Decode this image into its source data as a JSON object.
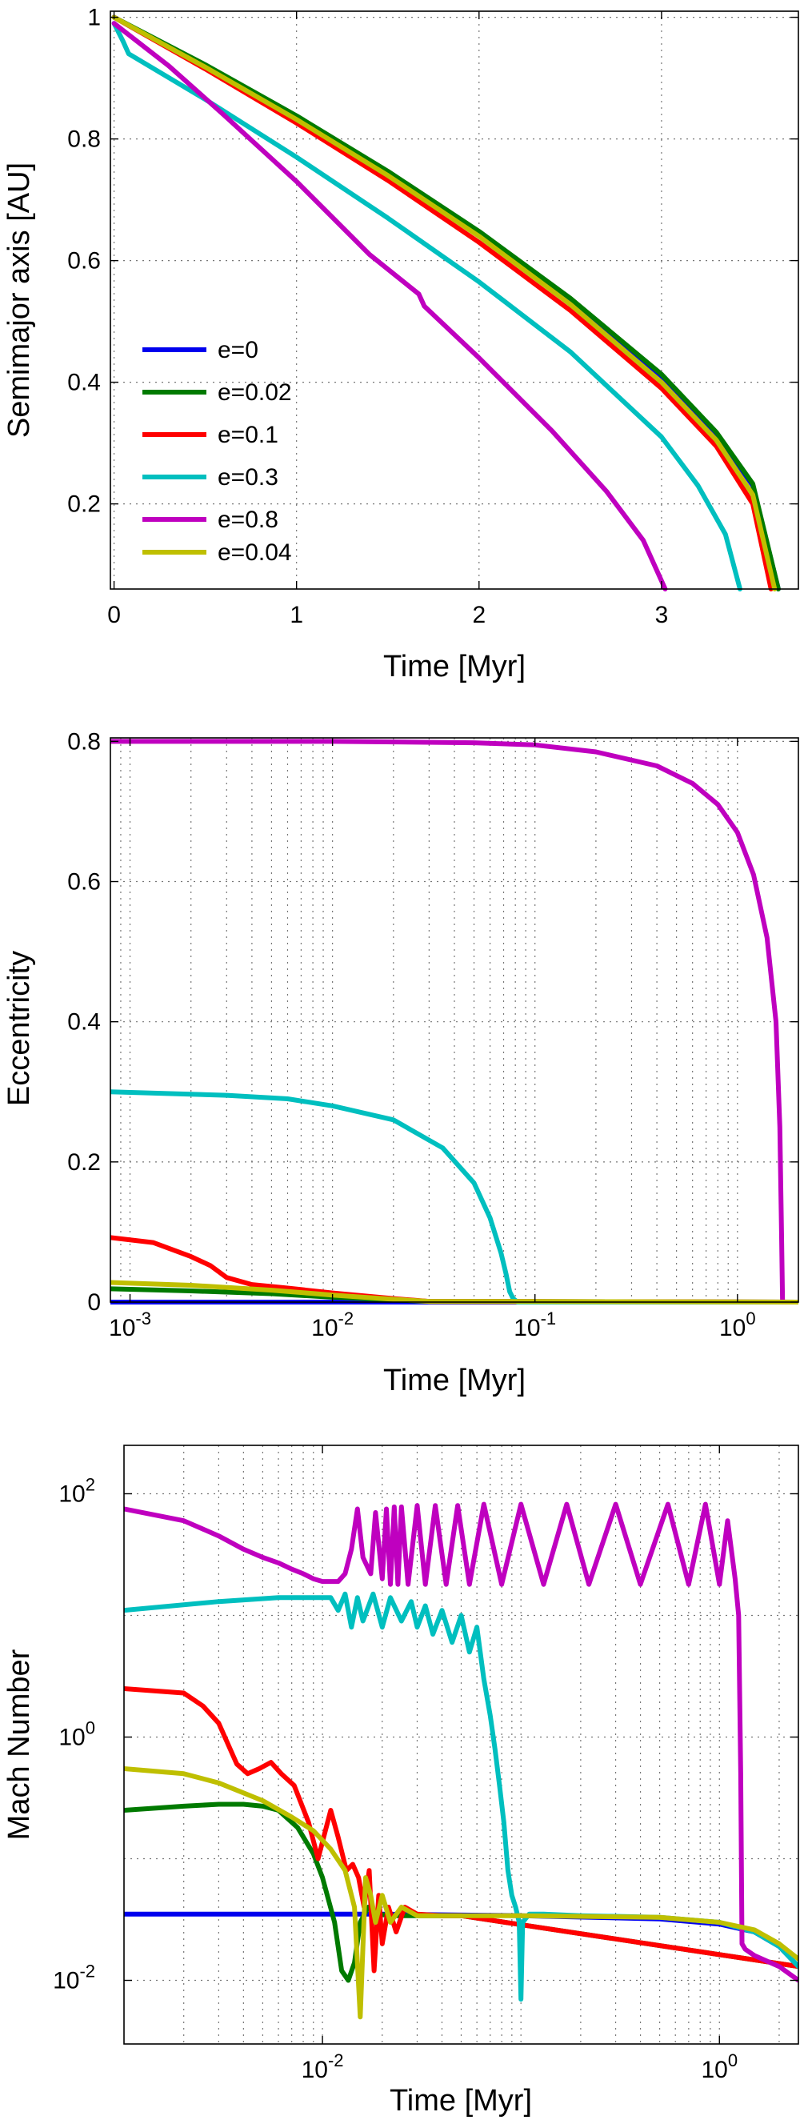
{
  "colors": {
    "e0": "#0000ee",
    "e002": "#007a00",
    "e01": "#ff0000",
    "e03": "#00bfbf",
    "e08": "#bf00bf",
    "e004": "#bfbf00"
  },
  "chart_data": [
    {
      "type": "line",
      "xscale": "linear",
      "yscale": "linear",
      "xlabel": "Time [Myr]",
      "ylabel": "Semimajor axis [AU]",
      "xlim": [
        -0.02,
        3.75
      ],
      "ylim": [
        0.06,
        1.01
      ],
      "grid": true,
      "legend_position": "bottom-left",
      "xticks": [
        0,
        1,
        2,
        3
      ],
      "xticklabels": [
        "0",
        "1",
        "2",
        "3"
      ],
      "yticks": [
        0.2,
        0.4,
        0.6,
        0.8,
        1.0
      ],
      "yticklabels": [
        "0.2",
        "0.4",
        "0.6",
        "0.8",
        "1"
      ],
      "series": [
        {
          "name": "e=0",
          "color_key": "e0",
          "x": [
            0,
            0.5,
            1.0,
            1.5,
            2.0,
            2.5,
            3.0,
            3.3,
            3.5,
            3.64
          ],
          "y": [
            1.0,
            0.92,
            0.836,
            0.745,
            0.645,
            0.535,
            0.41,
            0.315,
            0.23,
            0.06
          ]
        },
        {
          "name": "e=0.02",
          "color_key": "e002",
          "x": [
            0,
            0.5,
            1.0,
            1.5,
            2.0,
            2.5,
            3.0,
            3.3,
            3.5,
            3.64
          ],
          "y": [
            1.0,
            0.922,
            0.838,
            0.747,
            0.648,
            0.538,
            0.413,
            0.318,
            0.233,
            0.06
          ]
        },
        {
          "name": "e=0.1",
          "color_key": "e01",
          "x": [
            0,
            0.5,
            1.0,
            1.5,
            2.0,
            2.5,
            3.0,
            3.3,
            3.5,
            3.6
          ],
          "y": [
            1.0,
            0.915,
            0.826,
            0.732,
            0.63,
            0.518,
            0.39,
            0.295,
            0.2,
            0.06
          ]
        },
        {
          "name": "e=0.3",
          "color_key": "e03",
          "x": [
            0,
            0.05,
            0.08,
            0.5,
            1.0,
            1.5,
            2.0,
            2.5,
            3.0,
            3.2,
            3.35,
            3.43
          ],
          "y": [
            0.99,
            0.96,
            0.94,
            0.865,
            0.77,
            0.67,
            0.565,
            0.45,
            0.31,
            0.23,
            0.15,
            0.06
          ]
        },
        {
          "name": "e=0.8",
          "color_key": "e08",
          "x": [
            0,
            0.3,
            0.6,
            1.0,
            1.4,
            1.67,
            1.7,
            2.0,
            2.4,
            2.7,
            2.9,
            3.02
          ],
          "y": [
            0.99,
            0.92,
            0.84,
            0.73,
            0.61,
            0.545,
            0.525,
            0.44,
            0.32,
            0.22,
            0.14,
            0.06
          ]
        },
        {
          "name": "e=0.04",
          "color_key": "e004",
          "x": [
            0,
            0.5,
            1.0,
            1.5,
            2.0,
            2.5,
            3.0,
            3.3,
            3.5,
            3.62
          ],
          "y": [
            1.0,
            0.918,
            0.832,
            0.74,
            0.64,
            0.528,
            0.4,
            0.305,
            0.215,
            0.06
          ]
        }
      ]
    },
    {
      "type": "line",
      "xscale": "log",
      "yscale": "linear",
      "xlabel": "Time [Myr]",
      "ylabel": "Eccentricity",
      "xlim": [
        0.0008,
        2.0
      ],
      "ylim": [
        0,
        0.805
      ],
      "grid": true,
      "xticks": [
        0.001,
        0.01,
        0.1,
        1
      ],
      "xticklabels": [
        "10",
        "10",
        "10",
        "10"
      ],
      "xtickexps": [
        "-3",
        "-2",
        "-1",
        "0"
      ],
      "yticks": [
        0,
        0.2,
        0.4,
        0.6,
        0.8
      ],
      "yticklabels": [
        "0",
        "0.2",
        "0.4",
        "0.6",
        "0.8"
      ],
      "series": [
        {
          "name": "e=0",
          "color_key": "e0",
          "x": [
            0.0008,
            2.0
          ],
          "y": [
            0.0,
            0.0
          ]
        },
        {
          "name": "e=0.02",
          "color_key": "e002",
          "x": [
            0.0008,
            0.002,
            0.005,
            0.01,
            0.02,
            0.03,
            2.0
          ],
          "y": [
            0.019,
            0.016,
            0.012,
            0.007,
            0.003,
            0.001,
            0.0
          ]
        },
        {
          "name": "e=0.1",
          "color_key": "e01",
          "x": [
            0.0008,
            0.0013,
            0.002,
            0.0025,
            0.003,
            0.004,
            0.006,
            0.01,
            0.02,
            0.03,
            2.0
          ],
          "y": [
            0.092,
            0.085,
            0.065,
            0.052,
            0.035,
            0.025,
            0.02,
            0.013,
            0.005,
            0.001,
            0.0
          ]
        },
        {
          "name": "e=0.3",
          "color_key": "e03",
          "x": [
            0.0008,
            0.003,
            0.006,
            0.01,
            0.02,
            0.035,
            0.05,
            0.06,
            0.068,
            0.072,
            0.075,
            0.078,
            0.082,
            2.0
          ],
          "y": [
            0.3,
            0.295,
            0.29,
            0.28,
            0.26,
            0.22,
            0.17,
            0.12,
            0.07,
            0.04,
            0.015,
            0.005,
            0.0,
            0.0
          ]
        },
        {
          "name": "e=0.8",
          "color_key": "e08",
          "x": [
            0.0008,
            0.01,
            0.05,
            0.1,
            0.2,
            0.4,
            0.6,
            0.8,
            1.0,
            1.2,
            1.4,
            1.55,
            1.62,
            1.65,
            1.67,
            2.0
          ],
          "y": [
            0.8,
            0.8,
            0.798,
            0.795,
            0.785,
            0.765,
            0.74,
            0.71,
            0.67,
            0.61,
            0.52,
            0.4,
            0.25,
            0.1,
            0.0,
            0.0
          ]
        },
        {
          "name": "e=0.04",
          "color_key": "e004",
          "x": [
            0.0008,
            0.002,
            0.005,
            0.01,
            0.02,
            0.03,
            2.0
          ],
          "y": [
            0.028,
            0.024,
            0.017,
            0.01,
            0.004,
            0.001,
            0.0
          ]
        }
      ]
    },
    {
      "type": "line",
      "xscale": "log",
      "yscale": "log",
      "xlabel": "Time [Myr]",
      "ylabel": "Mach Number",
      "xlim": [
        0.001,
        2.5
      ],
      "ylim": [
        0.003,
        250
      ],
      "grid": true,
      "xticks": [
        0.01,
        1
      ],
      "xticklabels": [
        "10",
        "10"
      ],
      "xtickexps": [
        "-2",
        "0"
      ],
      "yticks": [
        0.01,
        1,
        100
      ],
      "yticklabels": [
        "10",
        "10",
        "10"
      ],
      "ytickexps": [
        "-2",
        "0",
        "2"
      ],
      "series": [
        {
          "name": "e=0",
          "color_key": "e0",
          "x": [
            0.001,
            0.02,
            0.1,
            0.5,
            1.0,
            1.5,
            2.0,
            2.5
          ],
          "y": [
            0.035,
            0.035,
            0.034,
            0.032,
            0.029,
            0.025,
            0.019,
            0.013
          ]
        },
        {
          "name": "e=0.02",
          "color_key": "e002",
          "x": [
            0.001,
            0.002,
            0.003,
            0.004,
            0.005,
            0.006,
            0.0075,
            0.009,
            0.01,
            0.0115,
            0.0125,
            0.0135,
            0.0145,
            0.0155,
            0.017,
            0.019,
            0.022,
            0.03,
            0.05,
            2.5
          ],
          "y": [
            0.25,
            0.27,
            0.28,
            0.28,
            0.27,
            0.25,
            0.18,
            0.11,
            0.07,
            0.03,
            0.012,
            0.01,
            0.014,
            0.03,
            0.04,
            0.035,
            0.034,
            0.034,
            0.034,
            0.013
          ]
        },
        {
          "name": "e=0.1",
          "color_key": "e01",
          "x": [
            0.001,
            0.002,
            0.0025,
            0.003,
            0.0037,
            0.0042,
            0.0048,
            0.0055,
            0.0062,
            0.0072,
            0.0085,
            0.0095,
            0.011,
            0.012,
            0.0132,
            0.0142,
            0.0152,
            0.0162,
            0.0172,
            0.0182,
            0.0192,
            0.02,
            0.0215,
            0.0235,
            0.026,
            0.03,
            0.04,
            0.05,
            2.5
          ],
          "y": [
            2.5,
            2.3,
            1.8,
            1.3,
            0.6,
            0.5,
            0.55,
            0.62,
            0.5,
            0.4,
            0.2,
            0.1,
            0.25,
            0.15,
            0.08,
            0.09,
            0.07,
            0.04,
            0.08,
            0.012,
            0.05,
            0.02,
            0.04,
            0.025,
            0.04,
            0.035,
            0.034,
            0.034,
            0.013
          ]
        },
        {
          "name": "e=0.3",
          "color_key": "e03",
          "x": [
            0.001,
            0.003,
            0.006,
            0.009,
            0.011,
            0.012,
            0.013,
            0.014,
            0.015,
            0.016,
            0.018,
            0.02,
            0.022,
            0.025,
            0.028,
            0.03,
            0.033,
            0.036,
            0.04,
            0.045,
            0.05,
            0.055,
            0.06,
            0.065,
            0.07,
            0.074,
            0.078,
            0.082,
            0.086,
            0.09,
            0.094,
            0.098,
            0.1,
            0.102,
            0.11,
            0.13,
            0.2,
            0.5,
            1.0,
            1.5,
            2.0,
            2.5
          ],
          "y": [
            11,
            13,
            14,
            14,
            14,
            11,
            15,
            8,
            14,
            9,
            15,
            8,
            14,
            9,
            13,
            8,
            12,
            7,
            11,
            6,
            10,
            5,
            8,
            3,
            1.5,
            0.8,
            0.4,
            0.2,
            0.08,
            0.05,
            0.04,
            0.03,
            0.007,
            0.03,
            0.035,
            0.035,
            0.034,
            0.033,
            0.03,
            0.025,
            0.019,
            0.013
          ]
        },
        {
          "name": "e=0.8",
          "color_key": "e08",
          "x": [
            0.001,
            0.002,
            0.003,
            0.004,
            0.005,
            0.006,
            0.007,
            0.008,
            0.009,
            0.01,
            0.012,
            0.013,
            0.014,
            0.015,
            0.016,
            0.0175,
            0.0185,
            0.02,
            0.021,
            0.022,
            0.023,
            0.024,
            0.025,
            0.027,
            0.03,
            0.033,
            0.037,
            0.042,
            0.048,
            0.055,
            0.065,
            0.08,
            0.1,
            0.13,
            0.17,
            0.22,
            0.3,
            0.4,
            0.55,
            0.7,
            0.85,
            1.0,
            1.1,
            1.2,
            1.25,
            1.28,
            1.3,
            1.35,
            1.5,
            2.0,
            2.5
          ],
          "y": [
            75,
            60,
            45,
            35,
            30,
            27,
            24,
            22,
            20,
            19,
            19,
            22,
            35,
            75,
            30,
            22,
            70,
            20,
            75,
            18,
            78,
            18,
            78,
            18,
            80,
            18,
            80,
            18,
            80,
            18,
            82,
            18,
            82,
            18,
            82,
            18,
            82,
            18,
            82,
            18,
            82,
            18,
            60,
            20,
            10,
            0.5,
            0.02,
            0.018,
            0.016,
            0.013,
            0.01
          ]
        },
        {
          "name": "e=0.04",
          "color_key": "e004",
          "x": [
            0.001,
            0.002,
            0.003,
            0.005,
            0.007,
            0.009,
            0.011,
            0.013,
            0.0145,
            0.0155,
            0.0165,
            0.0175,
            0.0185,
            0.02,
            0.022,
            0.025,
            0.03,
            0.05,
            0.1,
            0.5,
            1.0,
            1.5,
            2.0,
            2.5
          ],
          "y": [
            0.55,
            0.5,
            0.42,
            0.3,
            0.22,
            0.17,
            0.12,
            0.08,
            0.04,
            0.005,
            0.07,
            0.05,
            0.03,
            0.05,
            0.03,
            0.04,
            0.034,
            0.034,
            0.034,
            0.033,
            0.03,
            0.026,
            0.02,
            0.015
          ]
        }
      ]
    }
  ]
}
